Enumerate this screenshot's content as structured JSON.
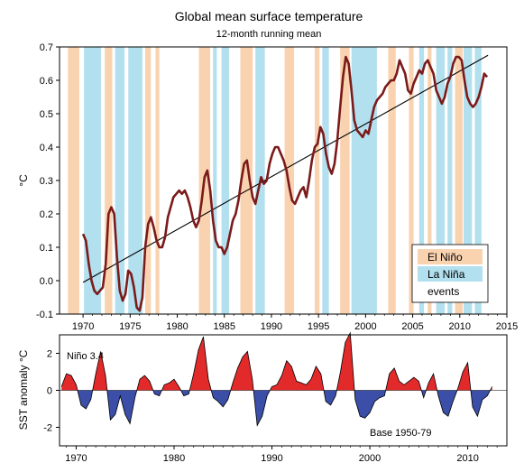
{
  "colors": {
    "el_nino": "#f9d3b0",
    "la_nina": "#b2e0ee",
    "temp_line": "#7b1a1a",
    "trend_line": "#000000",
    "sst_positive": "#e22a2a",
    "sst_negative": "#3b4ea8"
  },
  "chart_data": [
    {
      "type": "line",
      "title": "Global mean surface temperature",
      "subtitle": "12-month running mean",
      "ylabel": "°C",
      "xlim": [
        1967.5,
        2015
      ],
      "ylim": [
        -0.1,
        0.7
      ],
      "xticks": [
        "1970",
        "1975",
        "1980",
        "1985",
        "1990",
        "1995",
        "2000",
        "2005",
        "2010",
        "2015"
      ],
      "yticks": [
        "-0.1",
        "0.0",
        "0.1",
        "0.2",
        "0.3",
        "0.4",
        "0.5",
        "0.6",
        "0.7"
      ],
      "legend": {
        "placement": "bottom-right",
        "entries": [
          "El Niño",
          "La Niña",
          "events"
        ]
      },
      "el_nino_periods": [
        [
          1968.4,
          1969.6
        ],
        [
          1972.3,
          1973.1
        ],
        [
          1976.6,
          1977.2
        ],
        [
          1977.7,
          1978.1
        ],
        [
          1982.3,
          1983.5
        ],
        [
          1986.7,
          1988.0
        ],
        [
          1991.4,
          1992.4
        ],
        [
          1994.6,
          1995.1
        ],
        [
          1997.3,
          1998.3
        ],
        [
          2002.4,
          2003.2
        ],
        [
          2004.6,
          2005.1
        ],
        [
          2006.6,
          2007.0
        ],
        [
          2009.5,
          2010.3
        ]
      ],
      "la_nina_periods": [
        [
          1970.1,
          1971.9
        ],
        [
          1973.4,
          1974.4
        ],
        [
          1974.8,
          1976.3
        ],
        [
          1983.8,
          1984.2
        ],
        [
          1984.7,
          1985.5
        ],
        [
          1988.3,
          1989.3
        ],
        [
          1995.4,
          1996.1
        ],
        [
          1998.5,
          2001.2
        ],
        [
          2005.7,
          2006.2
        ],
        [
          2007.5,
          2008.4
        ],
        [
          2008.7,
          2009.2
        ],
        [
          2010.4,
          2011.3
        ],
        [
          2011.6,
          2012.3
        ]
      ],
      "series": [
        {
          "x": [
            1970,
            1970.3,
            1970.6,
            1970.9,
            1971.2,
            1971.5,
            1971.8,
            1972.1,
            1972.4,
            1972.7,
            1973,
            1973.3,
            1973.6,
            1973.9,
            1974.2,
            1974.5,
            1974.8,
            1975.1,
            1975.4,
            1975.7,
            1976,
            1976.3,
            1976.6,
            1976.9,
            1977.2,
            1977.5,
            1977.8,
            1978.1,
            1978.4,
            1978.7,
            1979,
            1979.3,
            1979.6,
            1979.9,
            1980.2,
            1980.5,
            1980.8,
            1981.1,
            1981.4,
            1981.7,
            1982,
            1982.3,
            1982.6,
            1982.9,
            1983.2,
            1983.5,
            1983.8,
            1984.1,
            1984.4,
            1984.7,
            1985,
            1985.3,
            1985.6,
            1985.9,
            1986.2,
            1986.5,
            1986.8,
            1987.1,
            1987.4,
            1987.7,
            1988,
            1988.3,
            1988.6,
            1988.9,
            1989.2,
            1989.5,
            1989.8,
            1990.1,
            1990.4,
            1990.7,
            1991,
            1991.3,
            1991.6,
            1991.9,
            1992.2,
            1992.5,
            1992.8,
            1993.1,
            1993.4,
            1993.7,
            1994,
            1994.3,
            1994.6,
            1994.9,
            1995.2,
            1995.5,
            1995.8,
            1996.1,
            1996.4,
            1996.7,
            1997,
            1997.3,
            1997.6,
            1997.9,
            1998.2,
            1998.5,
            1998.8,
            1999.1,
            1999.4,
            1999.7,
            2000,
            2000.3,
            2000.6,
            2000.9,
            2001.2,
            2001.5,
            2001.8,
            2002.1,
            2002.4,
            2002.7,
            2003,
            2003.3,
            2003.6,
            2003.9,
            2004.2,
            2004.5,
            2004.8,
            2005.1,
            2005.4,
            2005.7,
            2006,
            2006.3,
            2006.6,
            2006.9,
            2007.2,
            2007.5,
            2007.8,
            2008.1,
            2008.4,
            2008.7,
            2009,
            2009.3,
            2009.6,
            2009.9,
            2010.2,
            2010.5,
            2010.8,
            2011.1,
            2011.4,
            2011.7,
            2012,
            2012.3,
            2012.6,
            2012.9
          ],
          "values": [
            0.14,
            0.12,
            0.05,
            0.0,
            -0.03,
            -0.04,
            -0.03,
            -0.02,
            0.05,
            0.2,
            0.22,
            0.2,
            0.07,
            -0.03,
            -0.06,
            -0.04,
            0.03,
            0.02,
            -0.02,
            -0.08,
            -0.09,
            -0.05,
            0.1,
            0.17,
            0.19,
            0.16,
            0.12,
            0.1,
            0.1,
            0.13,
            0.19,
            0.22,
            0.25,
            0.26,
            0.27,
            0.26,
            0.27,
            0.25,
            0.22,
            0.18,
            0.16,
            0.18,
            0.24,
            0.31,
            0.33,
            0.27,
            0.18,
            0.12,
            0.1,
            0.1,
            0.08,
            0.1,
            0.14,
            0.18,
            0.2,
            0.24,
            0.3,
            0.35,
            0.36,
            0.3,
            0.25,
            0.23,
            0.27,
            0.31,
            0.29,
            0.3,
            0.35,
            0.38,
            0.4,
            0.4,
            0.38,
            0.36,
            0.33,
            0.28,
            0.24,
            0.23,
            0.25,
            0.27,
            0.28,
            0.25,
            0.3,
            0.36,
            0.4,
            0.41,
            0.46,
            0.44,
            0.38,
            0.34,
            0.32,
            0.35,
            0.42,
            0.52,
            0.61,
            0.67,
            0.65,
            0.57,
            0.48,
            0.45,
            0.44,
            0.43,
            0.45,
            0.44,
            0.48,
            0.52,
            0.54,
            0.55,
            0.56,
            0.58,
            0.59,
            0.6,
            0.6,
            0.62,
            0.66,
            0.64,
            0.62,
            0.57,
            0.56,
            0.59,
            0.61,
            0.63,
            0.62,
            0.65,
            0.66,
            0.64,
            0.62,
            0.57,
            0.55,
            0.53,
            0.55,
            0.59,
            0.61,
            0.65,
            0.67,
            0.67,
            0.66,
            0.6,
            0.55,
            0.53,
            0.52,
            0.53,
            0.55,
            0.58,
            0.62,
            0.61
          ]
        },
        {
          "x": [
            1970,
            2013
          ],
          "values": [
            -0.005,
            0.675
          ]
        }
      ]
    },
    {
      "type": "area",
      "ylabel": "SST anomaly °C",
      "annotations": [
        "Niño 3.4",
        "Base 1950-79"
      ],
      "xlim": [
        1968.3,
        2014
      ],
      "ylim": [
        -3,
        3
      ],
      "xticks": [
        "1970",
        "1980",
        "1990",
        "2000",
        "2010"
      ],
      "yticks": [
        "2",
        "0",
        "-2"
      ],
      "series": [
        {
          "x": [
            1968.5,
            1969,
            1969.5,
            1970,
            1970.5,
            1971,
            1971.5,
            1972,
            1972.5,
            1973,
            1973.5,
            1974,
            1974.5,
            1975,
            1975.5,
            1976,
            1976.5,
            1977,
            1977.5,
            1978,
            1978.5,
            1979,
            1979.5,
            1980,
            1980.5,
            1981,
            1981.5,
            1982,
            1982.5,
            1983,
            1983.5,
            1984,
            1984.5,
            1985,
            1985.5,
            1986,
            1986.5,
            1987,
            1987.5,
            1988,
            1988.5,
            1989,
            1989.5,
            1990,
            1990.5,
            1991,
            1991.5,
            1992,
            1992.5,
            1993,
            1993.5,
            1994,
            1994.5,
            1995,
            1995.5,
            1996,
            1996.5,
            1997,
            1997.5,
            1998,
            1998.5,
            1999,
            1999.5,
            2000,
            2000.5,
            2001,
            2001.5,
            2002,
            2002.5,
            2003,
            2003.5,
            2004,
            2004.5,
            2005,
            2005.5,
            2006,
            2006.5,
            2007,
            2007.5,
            2008,
            2008.5,
            2009,
            2009.5,
            2010,
            2010.5,
            2011,
            2011.5,
            2012,
            2012.5
          ],
          "values": [
            0.2,
            0.9,
            0.8,
            0.3,
            -0.8,
            -1.0,
            -0.5,
            0.9,
            2.1,
            0.8,
            -1.6,
            -1.3,
            -0.3,
            -1.3,
            -1.8,
            -0.4,
            0.6,
            0.8,
            0.5,
            -0.2,
            -0.3,
            0.3,
            0.4,
            0.6,
            0.2,
            -0.3,
            -0.2,
            0.9,
            2.2,
            2.9,
            0.6,
            -0.4,
            -0.6,
            -0.9,
            -0.5,
            0.4,
            1.2,
            1.8,
            2.1,
            0.6,
            -1.9,
            -1.4,
            -0.3,
            0.2,
            0.3,
            0.8,
            1.6,
            1.3,
            0.5,
            0.4,
            0.3,
            0.6,
            1.3,
            0.9,
            -0.6,
            -0.8,
            -0.3,
            1.0,
            2.6,
            3.1,
            -0.5,
            -1.4,
            -1.5,
            -1.2,
            -0.6,
            -0.4,
            -0.3,
            0.9,
            1.2,
            0.5,
            0.3,
            0.5,
            0.7,
            0.5,
            -0.4,
            0.4,
            0.9,
            -0.3,
            -1.2,
            -1.4,
            -0.6,
            0.1,
            1.0,
            1.5,
            -0.9,
            -1.4,
            -0.5,
            -0.3,
            0.2
          ]
        }
      ]
    }
  ]
}
